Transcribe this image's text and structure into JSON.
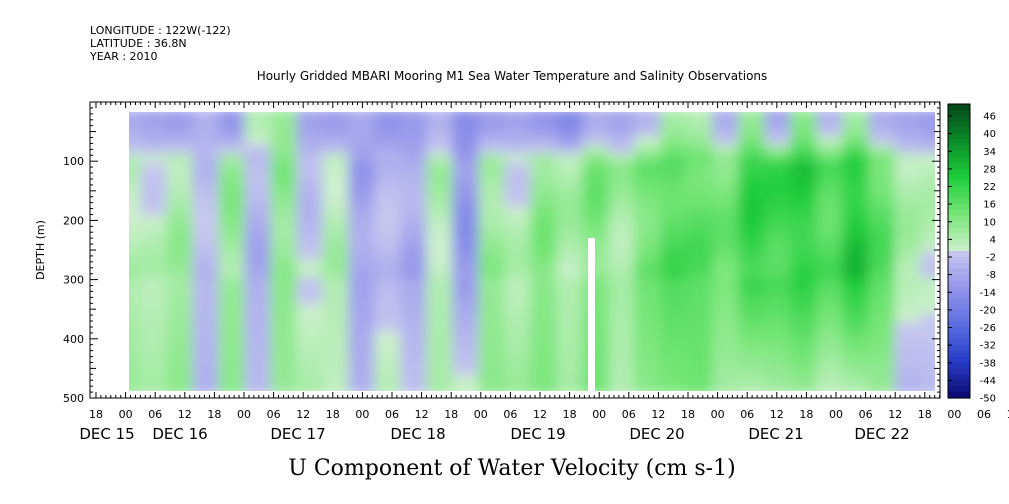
{
  "header": {
    "longitude": "LONGITUDE : 122W(-122)",
    "latitude": "LATITUDE : 36.8N",
    "year": "YEAR : 2010"
  },
  "chart_data": {
    "type": "heatmap",
    "title": "Hourly Gridded MBARI Mooring M1 Sea Water Temperature and Salinity Observations",
    "xlabel": "U Component of Water Velocity (cm s-1)",
    "ylabel": "DEPTH (m)",
    "ylim": [
      500,
      0
    ],
    "y_ticks": [
      100,
      200,
      300,
      400,
      500
    ],
    "x_hour_ticks": [
      "18",
      "00",
      "06",
      "12",
      "18",
      "00",
      "06",
      "12",
      "18",
      "00",
      "06",
      "12",
      "18",
      "00",
      "06",
      "12",
      "18",
      "00",
      "06",
      "12",
      "18",
      "00",
      "06",
      "12",
      "18",
      "00",
      "06",
      "12",
      "18",
      "00",
      "06",
      "12",
      "18"
    ],
    "x_date_labels": [
      "DEC 15",
      "DEC 16",
      "DEC 17",
      "DEC 18",
      "DEC 19",
      "DEC 20",
      "DEC 21",
      "DEC 22"
    ],
    "colorbar_ticks": [
      "46",
      "40",
      "34",
      "28",
      "22",
      "16",
      "10",
      "4",
      "-2",
      "-8",
      "-14",
      "-20",
      "-26",
      "-32",
      "-38",
      "-44",
      "-50"
    ],
    "colorbar_range": [
      -50,
      50
    ],
    "data_depth_range": [
      20,
      490
    ],
    "gap_day": "DEC 19 ~20:00",
    "columns": [
      {
        "day": 0.0,
        "sfc": -8,
        "mid": 4,
        "deep": 8
      },
      {
        "day": 0.25,
        "sfc": -10,
        "mid": 2,
        "deep": 6
      },
      {
        "day": 0.5,
        "sfc": -12,
        "mid": 6,
        "deep": 10
      },
      {
        "day": 0.75,
        "sfc": -6,
        "mid": -4,
        "deep": -6
      },
      {
        "day": 1.0,
        "sfc": -14,
        "mid": 8,
        "deep": 10
      },
      {
        "day": 1.25,
        "sfc": 4,
        "mid": -6,
        "deep": -4
      },
      {
        "day": 1.5,
        "sfc": 8,
        "mid": 10,
        "deep": 8
      },
      {
        "day": 1.75,
        "sfc": -10,
        "mid": -2,
        "deep": 6
      },
      {
        "day": 2.0,
        "sfc": -12,
        "mid": 4,
        "deep": 2
      },
      {
        "day": 2.25,
        "sfc": -8,
        "mid": -10,
        "deep": -6
      },
      {
        "day": 2.5,
        "sfc": -14,
        "mid": -4,
        "deep": 4
      },
      {
        "day": 2.75,
        "sfc": -12,
        "mid": -8,
        "deep": -2
      },
      {
        "day": 3.0,
        "sfc": -6,
        "mid": 4,
        "deep": 6
      },
      {
        "day": 3.25,
        "sfc": -16,
        "mid": -12,
        "deep": 2
      },
      {
        "day": 3.5,
        "sfc": -12,
        "mid": 8,
        "deep": 10
      },
      {
        "day": 3.75,
        "sfc": -10,
        "mid": 2,
        "deep": 8
      },
      {
        "day": 4.0,
        "sfc": -14,
        "mid": 10,
        "deep": 12
      },
      {
        "day": 4.25,
        "sfc": -18,
        "mid": 4,
        "deep": 6
      },
      {
        "day": 4.5,
        "sfc": -8,
        "mid": 12,
        "deep": 14
      },
      {
        "day": 4.75,
        "sfc": -10,
        "mid": 6,
        "deep": 4
      },
      {
        "day": 5.0,
        "sfc": -6,
        "mid": 14,
        "deep": 10
      },
      {
        "day": 5.25,
        "sfc": 6,
        "mid": 18,
        "deep": 12
      },
      {
        "day": 5.5,
        "sfc": 4,
        "mid": 16,
        "deep": 14
      },
      {
        "day": 5.75,
        "sfc": -8,
        "mid": 12,
        "deep": 6
      },
      {
        "day": 6.0,
        "sfc": 8,
        "mid": 22,
        "deep": 4
      },
      {
        "day": 6.25,
        "sfc": -10,
        "mid": 20,
        "deep": 6
      },
      {
        "day": 6.5,
        "sfc": 10,
        "mid": 24,
        "deep": 8
      },
      {
        "day": 6.75,
        "sfc": -6,
        "mid": 18,
        "deep": 2
      },
      {
        "day": 7.0,
        "sfc": 6,
        "mid": 26,
        "deep": 4
      },
      {
        "day": 7.25,
        "sfc": -8,
        "mid": 16,
        "deep": 8
      },
      {
        "day": 7.5,
        "sfc": -10,
        "mid": 4,
        "deep": -6
      },
      {
        "day": 7.75,
        "sfc": -12,
        "mid": 2,
        "deep": -4
      }
    ]
  }
}
